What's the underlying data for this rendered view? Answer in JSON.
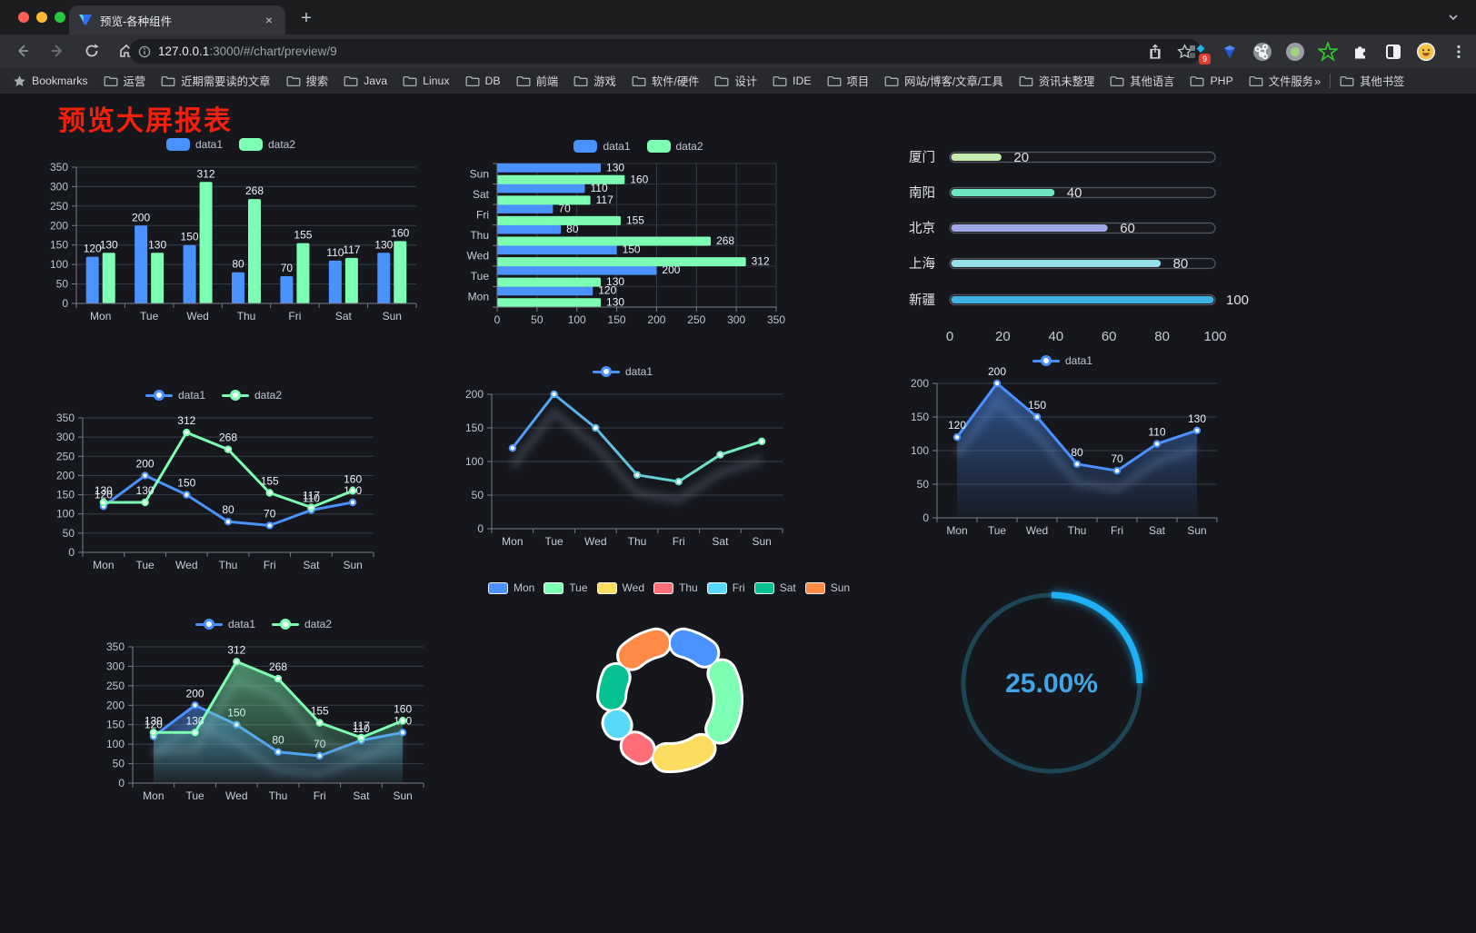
{
  "browser": {
    "tab": {
      "title": "预览-各种组件"
    },
    "new_tab_label": "+",
    "close_label": "×",
    "url": {
      "host": "127.0.0.1",
      "rest": ":3000/#/chart/preview/9"
    },
    "bookmarks_label": "Bookmarks",
    "bookmarks": [
      "运营",
      "近期需要读的文章",
      "搜索",
      "Java",
      "Linux",
      "DB",
      "前端",
      "游戏",
      "软件/硬件",
      "设计",
      "IDE",
      "项目",
      "网站/博客/文章/工具",
      "资讯未整理",
      "其他语言",
      "PHP",
      "文件服务器"
    ],
    "overflow_chevron": "»",
    "other_bookmarks": "其他书签",
    "extension_badge": "9",
    "traffic_lights": {
      "close": "#ff5f57",
      "minimize": "#fdbc2e",
      "zoom": "#28c841"
    }
  },
  "page": {
    "title": "预览大屏报表",
    "title_color": "#f5200c",
    "background": "#16171d"
  },
  "chart_data": [
    {
      "type": "bar",
      "categories": [
        "Mon",
        "Tue",
        "Wed",
        "Thu",
        "Fri",
        "Sat",
        "Sun"
      ],
      "series": [
        {
          "name": "data1",
          "color": "#4992ff",
          "values": [
            120,
            200,
            150,
            80,
            70,
            110,
            130
          ]
        },
        {
          "name": "data2",
          "color": "#7cffb2",
          "values": [
            130,
            130,
            312,
            268,
            155,
            117,
            160
          ]
        }
      ],
      "ylim": [
        0,
        350
      ],
      "ystep": 50,
      "labels": true,
      "legend": {
        "marker": "rect",
        "items": [
          {
            "label": "data1",
            "color": "#4992ff"
          },
          {
            "label": "data2",
            "color": "#7cffb2"
          }
        ]
      }
    },
    {
      "type": "bar-horizontal",
      "categories": [
        "Mon",
        "Tue",
        "Wed",
        "Thu",
        "Fri",
        "Sat",
        "Sun"
      ],
      "series": [
        {
          "name": "data1",
          "color": "#4992ff",
          "values": [
            120,
            200,
            150,
            80,
            70,
            110,
            130
          ]
        },
        {
          "name": "data2",
          "color": "#7cffb2",
          "values": [
            130,
            130,
            312,
            268,
            155,
            117,
            160
          ]
        }
      ],
      "xlim": [
        0,
        350
      ],
      "xstep": 50,
      "labels": true,
      "legend": {
        "marker": "rect",
        "items": [
          {
            "label": "data1",
            "color": "#4992ff"
          },
          {
            "label": "data2",
            "color": "#7cffb2"
          }
        ]
      }
    },
    {
      "type": "progress",
      "categories": [
        "厦门",
        "南阳",
        "北京",
        "上海",
        "新疆"
      ],
      "values": [
        20,
        40,
        60,
        80,
        100
      ],
      "colors": [
        "#c4ebad",
        "#6be6c1",
        "#a0a7e6",
        "#96dee8",
        "#3fb1e3"
      ],
      "xticks": [
        0,
        20,
        40,
        60,
        80,
        100
      ],
      "xlim": [
        0,
        100
      ],
      "track_border": "#545760"
    },
    {
      "type": "line",
      "categories": [
        "Mon",
        "Tue",
        "Wed",
        "Thu",
        "Fri",
        "Sat",
        "Sun"
      ],
      "series": [
        {
          "name": "data1",
          "color": "#4992ff",
          "values": [
            120,
            200,
            150,
            80,
            70,
            110,
            130
          ]
        },
        {
          "name": "data2",
          "color": "#7cffb2",
          "values": [
            130,
            130,
            312,
            268,
            155,
            117,
            160
          ]
        }
      ],
      "ylim": [
        0,
        350
      ],
      "ystep": 50,
      "labels": true,
      "legend": {
        "marker": "line",
        "items": [
          {
            "label": "data1",
            "color": "#4992ff"
          },
          {
            "label": "data2",
            "color": "#7cffb2"
          }
        ]
      }
    },
    {
      "type": "line",
      "categories": [
        "Mon",
        "Tue",
        "Wed",
        "Thu",
        "Fri",
        "Sat",
        "Sun"
      ],
      "series": [
        {
          "name": "data1",
          "gradient": [
            "#4992ff",
            "#7cffb2"
          ],
          "color": "#4992ff",
          "values": [
            120,
            200,
            150,
            80,
            70,
            110,
            130
          ]
        }
      ],
      "ylim": [
        0,
        200
      ],
      "ystep": 50,
      "labels": false,
      "shadow": true,
      "legend": {
        "marker": "line",
        "items": [
          {
            "label": "data1",
            "color": "#4992ff"
          }
        ]
      }
    },
    {
      "type": "line",
      "categories": [
        "Mon",
        "Tue",
        "Wed",
        "Thu",
        "Fri",
        "Sat",
        "Sun"
      ],
      "series": [
        {
          "name": "data1",
          "color": "#4992ff",
          "values": [
            120,
            200,
            150,
            80,
            70,
            110,
            130
          ],
          "area": true
        }
      ],
      "ylim": [
        0,
        200
      ],
      "ystep": 50,
      "labels": true,
      "shadow": true,
      "legend": {
        "marker": "line",
        "items": [
          {
            "label": "data1",
            "color": "#4992ff"
          }
        ]
      }
    },
    {
      "type": "line",
      "categories": [
        "Mon",
        "Tue",
        "Wed",
        "Thu",
        "Fri",
        "Sat",
        "Sun"
      ],
      "series": [
        {
          "name": "data1",
          "color": "#4992ff",
          "values": [
            120,
            200,
            150,
            80,
            70,
            110,
            130
          ],
          "area": true
        },
        {
          "name": "data2",
          "color": "#7cffb2",
          "values": [
            130,
            130,
            312,
            268,
            155,
            117,
            160
          ],
          "area": true
        }
      ],
      "ylim": [
        0,
        350
      ],
      "ystep": 50,
      "labels": true,
      "shadow": true,
      "legend": {
        "marker": "line",
        "items": [
          {
            "label": "data1",
            "color": "#4992ff"
          },
          {
            "label": "data2",
            "color": "#7cffb2"
          }
        ]
      }
    },
    {
      "type": "doughnut",
      "categories": [
        "Mon",
        "Tue",
        "Wed",
        "Thu",
        "Fri",
        "Sat",
        "Sun"
      ],
      "values": [
        120,
        200,
        150,
        80,
        70,
        110,
        130
      ],
      "colors": [
        "#4992ff",
        "#7cffb2",
        "#fddd60",
        "#ff6e76",
        "#58d9f9",
        "#05c091",
        "#ff8a45"
      ],
      "border_color": "#ffffff",
      "legend": {
        "marker": "rect",
        "bordered": true,
        "size": "sm",
        "items": [
          {
            "label": "Mon",
            "color": "#4992ff"
          },
          {
            "label": "Tue",
            "color": "#7cffb2"
          },
          {
            "label": "Wed",
            "color": "#fddd60"
          },
          {
            "label": "Thu",
            "color": "#ff6e76"
          },
          {
            "label": "Fri",
            "color": "#58d9f9"
          },
          {
            "label": "Sat",
            "color": "#05c091"
          },
          {
            "label": "Sun",
            "color": "#ff8a45"
          }
        ]
      }
    },
    {
      "type": "gauge",
      "value": "25.00%",
      "percent": 25,
      "color": "#1fb1f5",
      "track": "#1d4654",
      "text_color": "#3fa5e6"
    }
  ]
}
